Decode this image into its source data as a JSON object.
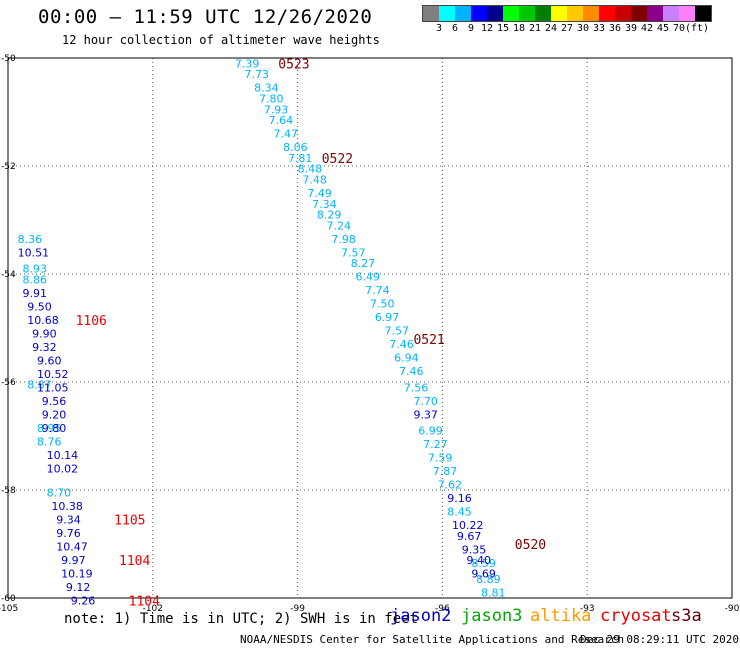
{
  "header": {
    "title": "00:00 – 11:59 UTC 12/26/2020",
    "subtitle": "12 hour collection of altimeter wave heights"
  },
  "footer": {
    "note": "note: 1) Time is in UTC; 2) SWH is in feet",
    "credit": "NOAA/NESDIS Center for Satellite Applications and Research",
    "timestamp": "Dec 29 08:29:11 UTC 2020"
  },
  "legend": [
    {
      "name": "jason2",
      "color": "#0000cc"
    },
    {
      "name": "jason3",
      "color": "#00aa00"
    },
    {
      "name": "altika",
      "color": "#ff9900"
    },
    {
      "name": "cryosat",
      "color": "#ee0000"
    },
    {
      "name": "s3a",
      "color": "#660000"
    }
  ],
  "colorbar": {
    "colors": [
      "#808080",
      "#00ffff",
      "#00b4ff",
      "#0000ff",
      "#00008b",
      "#00ff00",
      "#00c800",
      "#008000",
      "#ffff00",
      "#ffc800",
      "#ff8c00",
      "#ff0000",
      "#c80000",
      "#800000",
      "#8b008b",
      "#c880ff",
      "#ff80ff",
      "#000000"
    ],
    "labels": [
      "3",
      "6",
      "9",
      "12",
      "15",
      "18",
      "21",
      "24",
      "27",
      "30",
      "33",
      "36",
      "39",
      "42",
      "45",
      "70",
      "(ft)"
    ],
    "label_colors": [
      "#000000",
      "#000000",
      "#000000",
      "#000000",
      "#000000",
      "#000000",
      "#000000",
      "#000000",
      "#000000",
      "#000000",
      "#000000",
      "#000000",
      "#000000",
      "#000000",
      "#000000",
      "#000000",
      "#000000"
    ]
  },
  "chart_data": {
    "type": "scatter",
    "xlim": [
      -105,
      -90
    ],
    "ylim": [
      -60,
      -50
    ],
    "xticks": [
      -105,
      -102,
      -99,
      -96,
      -93,
      -90
    ],
    "yticks": [
      -50,
      -52,
      -54,
      -56,
      -58,
      -60
    ],
    "xtick_labels": [
      "-105",
      "-102",
      "-99",
      "-96",
      "-93",
      "-90"
    ],
    "ytick_labels": [
      "-50",
      "-52",
      "-54",
      "-56",
      "-58",
      "-60"
    ],
    "grid": true,
    "series": [
      {
        "color": "#00b4ff",
        "points": [
          {
            "x": -100.3,
            "y": -50.1,
            "label": "7.39"
          },
          {
            "x": -100.1,
            "y": -50.3,
            "label": "7.73"
          },
          {
            "x": -99.9,
            "y": -50.55,
            "label": "8.34"
          },
          {
            "x": -99.8,
            "y": -50.75,
            "label": "7.80"
          },
          {
            "x": -99.7,
            "y": -50.95,
            "label": "7.93"
          },
          {
            "x": -99.6,
            "y": -51.15,
            "label": "7.64"
          },
          {
            "x": -99.5,
            "y": -51.4,
            "label": "7.47"
          },
          {
            "x": -99.3,
            "y": -51.65,
            "label": "8.06"
          },
          {
            "x": -99.2,
            "y": -51.85,
            "label": "7.81"
          },
          {
            "x": -99.0,
            "y": -52.05,
            "label": "8.48"
          },
          {
            "x": -98.9,
            "y": -52.25,
            "label": "7.48"
          },
          {
            "x": -98.8,
            "y": -52.5,
            "label": "7.49"
          },
          {
            "x": -98.7,
            "y": -52.7,
            "label": "7.34"
          },
          {
            "x": -98.6,
            "y": -52.9,
            "label": "8.29"
          },
          {
            "x": -98.4,
            "y": -53.1,
            "label": "7.24"
          },
          {
            "x": -98.3,
            "y": -53.35,
            "label": "7.98"
          },
          {
            "x": -98.1,
            "y": -53.6,
            "label": "7.57"
          },
          {
            "x": -97.9,
            "y": -53.8,
            "label": "8.27"
          },
          {
            "x": -97.8,
            "y": -54.05,
            "label": "6.49"
          },
          {
            "x": -97.6,
            "y": -54.3,
            "label": "7.74"
          },
          {
            "x": -97.5,
            "y": -54.55,
            "label": "7.50"
          },
          {
            "x": -97.4,
            "y": -54.8,
            "label": "6.97"
          },
          {
            "x": -97.2,
            "y": -55.05,
            "label": "7.57"
          },
          {
            "x": -97.1,
            "y": -55.3,
            "label": "7.46"
          },
          {
            "x": -97.0,
            "y": -55.55,
            "label": "6.94"
          },
          {
            "x": -96.9,
            "y": -55.8,
            "label": "7.46"
          },
          {
            "x": -96.8,
            "y": -56.1,
            "label": "7.56"
          },
          {
            "x": -96.6,
            "y": -56.35,
            "label": "7.70"
          },
          {
            "x": -96.5,
            "y": -56.9,
            "label": "6.99"
          },
          {
            "x": -96.4,
            "y": -57.15,
            "label": "7.27"
          },
          {
            "x": -96.3,
            "y": -57.4,
            "label": "7.59"
          },
          {
            "x": -96.2,
            "y": -57.65,
            "label": "7.87"
          },
          {
            "x": -96.1,
            "y": -57.9,
            "label": "7.62"
          },
          {
            "x": -95.9,
            "y": -58.4,
            "label": "8.45"
          },
          {
            "x": -95.4,
            "y": -59.35,
            "label": "8.59"
          },
          {
            "x": -95.3,
            "y": -59.65,
            "label": "8.89"
          },
          {
            "x": -95.2,
            "y": -59.9,
            "label": "8.81"
          },
          {
            "x": -104.8,
            "y": -53.35,
            "label": "8.36"
          },
          {
            "x": -104.7,
            "y": -53.9,
            "label": "8.93"
          },
          {
            "x": -104.7,
            "y": -54.1,
            "label": "8.86"
          },
          {
            "x": -104.6,
            "y": -56.05,
            "label": "8.87"
          },
          {
            "x": -104.4,
            "y": -56.85,
            "label": "8.95"
          },
          {
            "x": -104.4,
            "y": -57.1,
            "label": "8.76"
          },
          {
            "x": -104.2,
            "y": -58.05,
            "label": "8.70"
          }
        ]
      },
      {
        "color": "#0000cc",
        "points": [
          {
            "x": -96.6,
            "y": -56.6,
            "label": "9.37"
          },
          {
            "x": -95.9,
            "y": -58.15,
            "label": "9.16"
          },
          {
            "x": -95.8,
            "y": -58.65,
            "label": "10.22"
          },
          {
            "x": -95.7,
            "y": -58.85,
            "label": "9.67"
          },
          {
            "x": -95.6,
            "y": -59.1,
            "label": "9.35"
          },
          {
            "x": -95.5,
            "y": -59.3,
            "label": "9.40"
          },
          {
            "x": -95.4,
            "y": -59.55,
            "label": "9.69"
          },
          {
            "x": -104.8,
            "y": -53.6,
            "label": "10.51"
          },
          {
            "x": -104.7,
            "y": -54.35,
            "label": "9.91"
          },
          {
            "x": -104.6,
            "y": -54.6,
            "label": "9.50"
          },
          {
            "x": -104.6,
            "y": -54.85,
            "label": "10.68"
          },
          {
            "x": -104.5,
            "y": -55.1,
            "label": "9.90"
          },
          {
            "x": -104.5,
            "y": -55.35,
            "label": "9.32"
          },
          {
            "x": -104.4,
            "y": -55.6,
            "label": "9.60"
          },
          {
            "x": -104.4,
            "y": -55.85,
            "label": "10.52"
          },
          {
            "x": -104.4,
            "y": -56.1,
            "label": "11.05"
          },
          {
            "x": -104.3,
            "y": -56.35,
            "label": "9.56"
          },
          {
            "x": -104.3,
            "y": -56.6,
            "label": "9.20"
          },
          {
            "x": -104.3,
            "y": -56.85,
            "label": "9.80"
          },
          {
            "x": -104.2,
            "y": -57.35,
            "label": "10.14"
          },
          {
            "x": -104.2,
            "y": -57.6,
            "label": "10.02"
          },
          {
            "x": -104.1,
            "y": -58.3,
            "label": "10.38"
          },
          {
            "x": -104.0,
            "y": -58.55,
            "label": "9.34"
          },
          {
            "x": -104.0,
            "y": -58.8,
            "label": "9.76"
          },
          {
            "x": -104.0,
            "y": -59.05,
            "label": "10.47"
          },
          {
            "x": -103.9,
            "y": -59.3,
            "label": "9.97"
          },
          {
            "x": -103.9,
            "y": -59.55,
            "label": "10.19"
          },
          {
            "x": -103.8,
            "y": -59.8,
            "label": "9.12"
          },
          {
            "x": -103.7,
            "y": -60.05,
            "label": "9.26"
          }
        ]
      }
    ],
    "annotations": [
      {
        "x": -99.4,
        "y": -50.1,
        "text": "0523",
        "color": "#800000"
      },
      {
        "x": -98.5,
        "y": -51.85,
        "text": "0522",
        "color": "#800000"
      },
      {
        "x": -96.6,
        "y": -55.2,
        "text": "0521",
        "color": "#800000"
      },
      {
        "x": -94.5,
        "y": -59.0,
        "text": "0520",
        "color": "#800000"
      },
      {
        "x": -103.6,
        "y": -54.85,
        "text": "1106",
        "color": "#ee0000"
      },
      {
        "x": -102.8,
        "y": -58.55,
        "text": "1105",
        "color": "#ee0000"
      },
      {
        "x": -102.7,
        "y": -59.3,
        "text": "1104",
        "color": "#ee0000"
      },
      {
        "x": -102.5,
        "y": -60.05,
        "text": "1104",
        "color": "#ee0000"
      }
    ]
  }
}
